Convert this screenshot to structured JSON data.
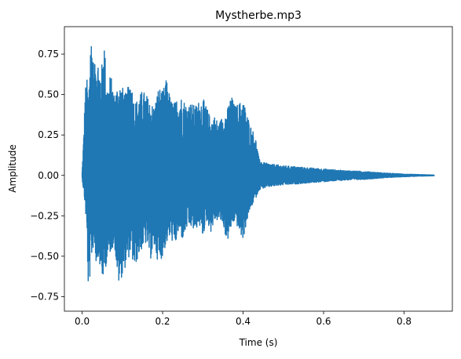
{
  "chart_data": {
    "type": "line",
    "title": "Mystherbe.mp3",
    "xlabel": "Time (s)",
    "ylabel": "Amplitude",
    "xlim": [
      -0.044,
      0.92
    ],
    "ylim": [
      -0.84,
      0.92
    ],
    "xticks": [
      0.0,
      0.2,
      0.4,
      0.6,
      0.8
    ],
    "xtick_labels": [
      "0.0",
      "0.2",
      "0.4",
      "0.6",
      "0.8"
    ],
    "yticks": [
      -0.75,
      -0.5,
      -0.25,
      0.0,
      0.25,
      0.5,
      0.75
    ],
    "ytick_labels": [
      "−0.75",
      "−0.50",
      "−0.25",
      "0.00",
      "0.25",
      "0.50",
      "0.75"
    ],
    "grid": false,
    "series": [
      {
        "color": "#1f77b4",
        "envelope_upper": {
          "x": [
            0.0,
            0.004,
            0.008,
            0.012,
            0.016,
            0.02,
            0.025,
            0.03,
            0.035,
            0.04,
            0.045,
            0.05,
            0.055,
            0.06,
            0.065,
            0.07,
            0.075,
            0.08,
            0.09,
            0.1,
            0.11,
            0.12,
            0.13,
            0.14,
            0.15,
            0.16,
            0.17,
            0.18,
            0.19,
            0.2,
            0.21,
            0.22,
            0.23,
            0.24,
            0.25,
            0.26,
            0.27,
            0.28,
            0.29,
            0.3,
            0.31,
            0.32,
            0.33,
            0.34,
            0.35,
            0.36,
            0.37,
            0.38,
            0.39,
            0.4,
            0.41,
            0.42,
            0.43,
            0.44,
            0.45,
            0.47,
            0.5,
            0.55,
            0.6,
            0.65,
            0.7,
            0.75,
            0.8,
            0.85,
            0.875
          ],
          "y": [
            0.02,
            0.25,
            0.55,
            0.6,
            0.45,
            0.86,
            0.87,
            0.64,
            0.78,
            0.72,
            0.65,
            0.7,
            0.86,
            0.6,
            0.55,
            0.63,
            0.58,
            0.5,
            0.58,
            0.55,
            0.5,
            0.62,
            0.45,
            0.48,
            0.53,
            0.5,
            0.45,
            0.43,
            0.55,
            0.52,
            0.6,
            0.47,
            0.45,
            0.5,
            0.48,
            0.44,
            0.45,
            0.43,
            0.46,
            0.48,
            0.42,
            0.35,
            0.37,
            0.32,
            0.38,
            0.4,
            0.5,
            0.43,
            0.45,
            0.47,
            0.38,
            0.3,
            0.25,
            0.1,
            0.08,
            0.07,
            0.06,
            0.05,
            0.04,
            0.03,
            0.025,
            0.015,
            0.008,
            0.004,
            0.002
          ]
        },
        "envelope_lower": {
          "x": [
            0.0,
            0.004,
            0.008,
            0.012,
            0.016,
            0.02,
            0.025,
            0.03,
            0.035,
            0.04,
            0.045,
            0.05,
            0.055,
            0.06,
            0.065,
            0.07,
            0.075,
            0.08,
            0.09,
            0.1,
            0.11,
            0.12,
            0.13,
            0.14,
            0.15,
            0.16,
            0.17,
            0.18,
            0.19,
            0.2,
            0.21,
            0.22,
            0.23,
            0.24,
            0.25,
            0.26,
            0.27,
            0.28,
            0.29,
            0.3,
            0.31,
            0.32,
            0.33,
            0.34,
            0.35,
            0.36,
            0.37,
            0.38,
            0.39,
            0.4,
            0.41,
            0.42,
            0.43,
            0.44,
            0.45,
            0.47,
            0.5,
            0.55,
            0.6,
            0.65,
            0.7,
            0.75,
            0.8,
            0.85,
            0.875
          ],
          "y": [
            -0.02,
            -0.1,
            -0.2,
            -0.38,
            -0.78,
            -0.6,
            -0.48,
            -0.42,
            -0.55,
            -0.5,
            -0.58,
            -0.65,
            -0.62,
            -0.55,
            -0.52,
            -0.48,
            -0.45,
            -0.42,
            -0.68,
            -0.62,
            -0.55,
            -0.48,
            -0.58,
            -0.5,
            -0.45,
            -0.42,
            -0.52,
            -0.45,
            -0.55,
            -0.5,
            -0.42,
            -0.38,
            -0.45,
            -0.35,
            -0.4,
            -0.33,
            -0.32,
            -0.35,
            -0.3,
            -0.38,
            -0.28,
            -0.35,
            -0.28,
            -0.28,
            -0.3,
            -0.42,
            -0.33,
            -0.28,
            -0.35,
            -0.4,
            -0.28,
            -0.2,
            -0.15,
            -0.09,
            -0.08,
            -0.07,
            -0.06,
            -0.05,
            -0.04,
            -0.03,
            -0.025,
            -0.015,
            -0.008,
            -0.004,
            -0.002
          ]
        }
      }
    ]
  }
}
